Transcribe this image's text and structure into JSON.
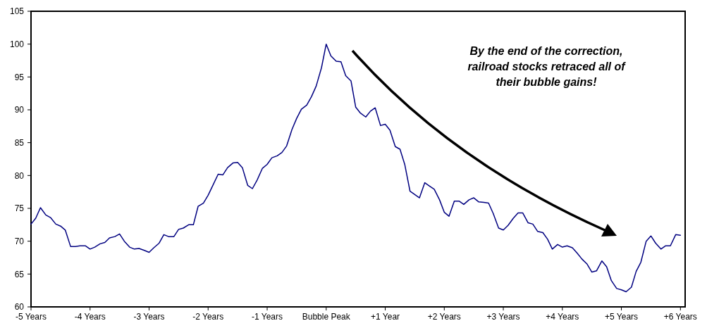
{
  "chart_data": {
    "type": "line",
    "annotations": [
      "By the end of the correction,\nrailroad stocks retraced all of\ntheir bubble gains!"
    ],
    "xlim": [
      -5,
      6.08
    ],
    "ylim": [
      60,
      105
    ],
    "yticks": [
      60,
      65,
      70,
      75,
      80,
      85,
      90,
      95,
      100,
      105
    ],
    "xticks": [
      {
        "value": -5,
        "label": "-5 Years"
      },
      {
        "value": -4,
        "label": "-4 Years"
      },
      {
        "value": -3,
        "label": "-3 Years"
      },
      {
        "value": -2,
        "label": "-2 Years"
      },
      {
        "value": -1,
        "label": "-1 Years"
      },
      {
        "value": 0,
        "label": "Bubble Peak"
      },
      {
        "value": 1,
        "label": "+1 Year"
      },
      {
        "value": 2,
        "label": "+2 Years"
      },
      {
        "value": 3,
        "label": "+3 Years"
      },
      {
        "value": 4,
        "label": "+4 Years"
      },
      {
        "value": 5,
        "label": "+5 Years"
      },
      {
        "value": 6,
        "label": "+6 Years"
      }
    ],
    "grid": false,
    "marker": "none",
    "line_style": "solid",
    "x": [
      -5,
      -4.92,
      -4.84,
      -4.75,
      -4.67,
      -4.58,
      -4.5,
      -4.42,
      -4.33,
      -4.25,
      -4.17,
      -4.08,
      -4,
      -3.92,
      -3.83,
      -3.75,
      -3.67,
      -3.58,
      -3.5,
      -3.42,
      -3.33,
      -3.25,
      -3.17,
      -3.08,
      -3,
      -2.92,
      -2.83,
      -2.75,
      -2.67,
      -2.58,
      -2.5,
      -2.42,
      -2.33,
      -2.25,
      -2.17,
      -2.08,
      -2,
      -1.92,
      -1.83,
      -1.75,
      -1.67,
      -1.58,
      -1.5,
      -1.42,
      -1.33,
      -1.25,
      -1.17,
      -1.08,
      -1,
      -0.92,
      -0.83,
      -0.75,
      -0.67,
      -0.58,
      -0.5,
      -0.42,
      -0.33,
      -0.25,
      -0.17,
      -0.08,
      0,
      0.08,
      0.17,
      0.25,
      0.33,
      0.42,
      0.5,
      0.58,
      0.67,
      0.75,
      0.83,
      0.92,
      1,
      1.08,
      1.17,
      1.25,
      1.33,
      1.42,
      1.5,
      1.58,
      1.67,
      1.75,
      1.83,
      1.92,
      2,
      2.08,
      2.17,
      2.25,
      2.33,
      2.42,
      2.5,
      2.58,
      2.67,
      2.75,
      2.83,
      2.92,
      3,
      3.08,
      3.17,
      3.25,
      3.33,
      3.42,
      3.5,
      3.58,
      3.67,
      3.75,
      3.83,
      3.92,
      4,
      4.08,
      4.17,
      4.25,
      4.33,
      4.42,
      4.5,
      4.58,
      4.67,
      4.75,
      4.83,
      4.92,
      5,
      5.08,
      5.17,
      5.25,
      5.33,
      5.42,
      5.5,
      5.58,
      5.67,
      5.75,
      5.83,
      5.92,
      6
    ],
    "series": [
      {
        "color": "#000080",
        "values": [
          72.6,
          73.5,
          75.1,
          74,
          73.6,
          72.6,
          72.3,
          71.7,
          69.2,
          69.2,
          69.3,
          69.3,
          68.8,
          69.1,
          69.6,
          69.8,
          70.5,
          70.7,
          71.1,
          70,
          69.1,
          68.8,
          68.9,
          68.6,
          68.3,
          69,
          69.7,
          71,
          70.7,
          70.7,
          71.8,
          72,
          72.5,
          72.5,
          75.3,
          75.8,
          77,
          78.5,
          80.2,
          80.1,
          81.2,
          81.9,
          82,
          81.2,
          78.5,
          78,
          79.3,
          81.1,
          81.7,
          82.7,
          83,
          83.5,
          84.5,
          87,
          88.7,
          90.1,
          90.7,
          92,
          93.6,
          96.4,
          100,
          98.2,
          97.4,
          97.3,
          95.2,
          94.4,
          90.4,
          89.5,
          88.9,
          89.8,
          90.3,
          87.6,
          87.8,
          86.9,
          84.4,
          84,
          81.7,
          77.6,
          77.1,
          76.6,
          78.9,
          78.4,
          77.9,
          76.3,
          74.4,
          73.8,
          76.1,
          76.1,
          75.6,
          76.3,
          76.6,
          76,
          75.9,
          75.8,
          74.2,
          72,
          71.7,
          72.4,
          73.5,
          74.3,
          74.3,
          72.8,
          72.6,
          71.5,
          71.3,
          70.3,
          68.8,
          69.5,
          69.1,
          69.3,
          69,
          68.2,
          67.3,
          66.5,
          65.3,
          65.5,
          67,
          66.1,
          64,
          62.8,
          62.6,
          62.3,
          63,
          65.4,
          66.8,
          70,
          70.8,
          69.7,
          68.8,
          69.3,
          69.3,
          71,
          70.9
        ]
      }
    ]
  }
}
